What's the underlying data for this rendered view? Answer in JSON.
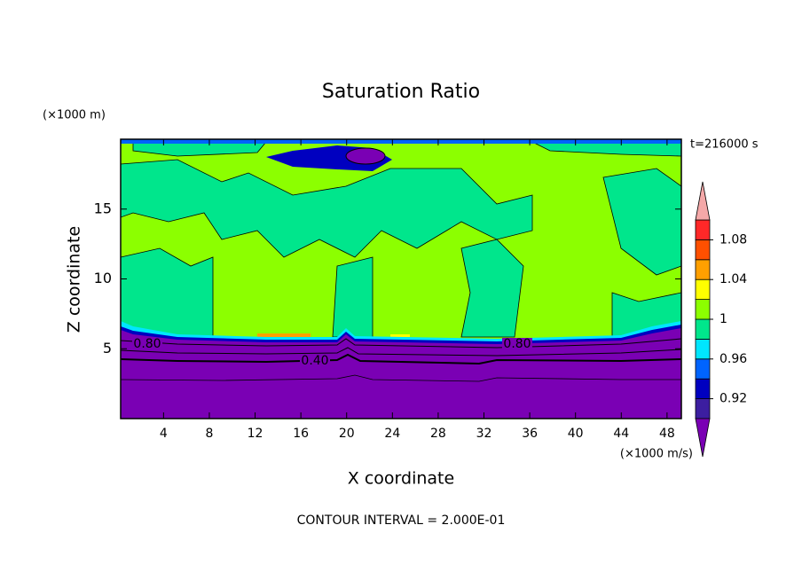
{
  "chart_data": {
    "type": "contour",
    "title": "Saturation Ratio",
    "xlabel": "X coordinate",
    "ylabel": "Z coordinate",
    "x_units": "(×1000 m/s)",
    "y_units": "(×1000 m)",
    "time_label": "t=216000 s",
    "footer": "CONTOUR INTERVAL = 2.000E-01",
    "xlim": [
      0.25,
      49.25
    ],
    "xticks": [
      4,
      8,
      12,
      16,
      20,
      24,
      28,
      32,
      36,
      40,
      44,
      48
    ],
    "ylim": [
      0,
      20
    ],
    "yticks": [
      5,
      10,
      15
    ],
    "colorbar": {
      "lim": [
        0.9,
        1.1
      ],
      "ticks": [
        0.92,
        0.96,
        1,
        1.04,
        1.08
      ],
      "colors": [
        "#3c1ea0",
        "#0000c0",
        "#0064ff",
        "#00e6ff",
        "#00e68c",
        "#8cff00",
        "#ffff00",
        "#ffa000",
        "#ff5000",
        "#ff2828"
      ],
      "under_color": "#7a00b4",
      "over_color": "#f4a8a8"
    },
    "contour_labels": [
      {
        "value": 0.8,
        "label": "0.80"
      },
      {
        "value": 0.4,
        "label": "0.40"
      },
      {
        "value": 0.8,
        "label": "0.80"
      }
    ]
  }
}
